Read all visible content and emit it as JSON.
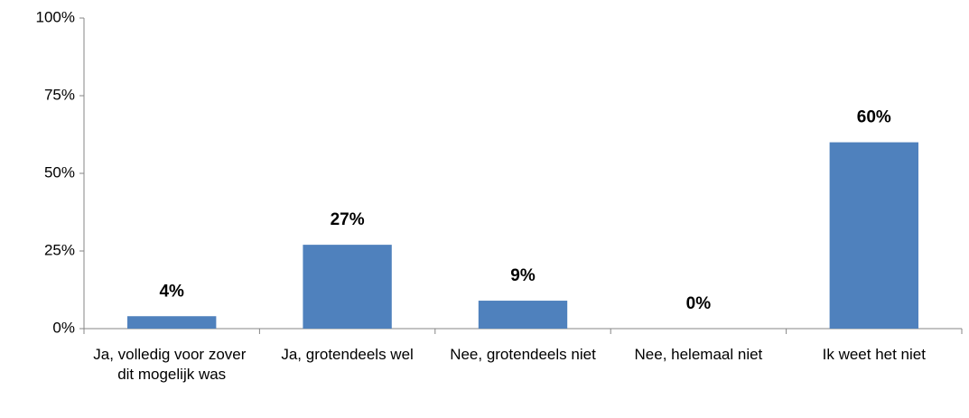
{
  "chart_data": {
    "type": "bar",
    "categories": [
      "Ja, volledig voor zover dit mogelijk was",
      "Ja, grotendeels wel",
      "Nee, grotendeels niet",
      "Nee, helemaal niet",
      "Ik weet het niet"
    ],
    "values": [
      4,
      27,
      9,
      0,
      60
    ],
    "value_labels": [
      "4%",
      "27%",
      "9%",
      "0%",
      "60%"
    ],
    "color": "#4f81bd",
    "ylim": [
      0,
      100
    ],
    "yticks": [
      {
        "value": 0,
        "label": "0%"
      },
      {
        "value": 25,
        "label": "25%"
      },
      {
        "value": 50,
        "label": "50%"
      },
      {
        "value": 75,
        "label": "75%"
      },
      {
        "value": 100,
        "label": "100%"
      }
    ]
  }
}
